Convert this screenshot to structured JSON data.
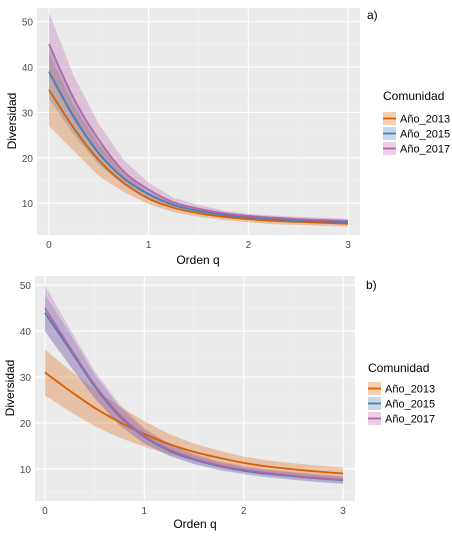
{
  "colors": {
    "panel_bg": "#ebebeb",
    "grid": "#ffffff",
    "Año_2013": "#d95f02",
    "Año_2015": "#4a7fb5",
    "Año_2017": "#b565a7"
  },
  "chart_data": [
    {
      "type": "line",
      "panel_label": "a)",
      "xlabel": "Orden q",
      "ylabel": "Diversidad",
      "xlim": [
        -0.12,
        3.12
      ],
      "ylim": [
        3,
        53
      ],
      "xticks": [
        0,
        1,
        2,
        3
      ],
      "yticks": [
        10,
        20,
        30,
        40,
        50
      ],
      "grid": true,
      "legend": {
        "title": "Comunidad",
        "position": "right"
      },
      "x": [
        0,
        0.25,
        0.5,
        0.75,
        1,
        1.25,
        1.5,
        1.75,
        2,
        2.25,
        2.5,
        2.75,
        3
      ],
      "series": [
        {
          "name": "Año_2013",
          "color_key": "Año_2013",
          "values": [
            35,
            26.5,
            19.5,
            14.5,
            11,
            9,
            7.8,
            7,
            6.5,
            6.1,
            5.9,
            5.7,
            5.5
          ],
          "lower": [
            27,
            21.5,
            16,
            12.5,
            9.8,
            8,
            7,
            6.3,
            5.8,
            5.4,
            5.2,
            5,
            4.8
          ],
          "upper": [
            43,
            31.5,
            23,
            16.5,
            12.2,
            10,
            8.6,
            7.7,
            7.2,
            6.8,
            6.6,
            6.4,
            6.2
          ]
        },
        {
          "name": "Año_2015",
          "color_key": "Año_2015",
          "values": [
            39,
            29,
            21,
            15.5,
            12,
            9.6,
            8.3,
            7.4,
            6.9,
            6.5,
            6.2,
            6,
            5.8
          ],
          "lower": [
            33,
            25,
            18.5,
            14,
            11,
            8.9,
            7.7,
            6.9,
            6.4,
            6,
            5.7,
            5.5,
            5.3
          ],
          "upper": [
            45,
            33,
            23.5,
            17,
            13,
            10.3,
            8.9,
            7.9,
            7.4,
            7,
            6.7,
            6.5,
            6.3
          ]
        },
        {
          "name": "Año_2017",
          "color_key": "Año_2017",
          "values": [
            45,
            33,
            24,
            17,
            13,
            10.2,
            8.8,
            7.8,
            7.2,
            6.8,
            6.5,
            6.3,
            6.1
          ],
          "lower": [
            38,
            28,
            20.5,
            15,
            11.5,
            9.2,
            8,
            7.2,
            6.7,
            6.3,
            6,
            5.8,
            5.6
          ],
          "upper": [
            52,
            38,
            27.5,
            19.5,
            14.5,
            11.2,
            9.6,
            8.4,
            7.7,
            7.3,
            7,
            6.8,
            6.6
          ]
        }
      ]
    },
    {
      "type": "line",
      "panel_label": "b)",
      "xlabel": "Orden q",
      "ylabel": "Diversidad",
      "xlim": [
        -0.1,
        3.12
      ],
      "ylim": [
        3,
        52
      ],
      "xticks": [
        0,
        1,
        2,
        3
      ],
      "yticks": [
        10,
        20,
        30,
        40,
        50
      ],
      "grid": true,
      "legend": {
        "title": "Comunidad",
        "position": "right"
      },
      "x": [
        0,
        0.25,
        0.5,
        0.75,
        1,
        1.25,
        1.5,
        1.75,
        2,
        2.25,
        2.5,
        2.75,
        3
      ],
      "series": [
        {
          "name": "Año_2013",
          "color_key": "Año_2013",
          "values": [
            31,
            27,
            23.3,
            20.2,
            17.6,
            15.4,
            13.7,
            12.4,
            11.3,
            10.5,
            9.9,
            9.4,
            9
          ],
          "lower": [
            26,
            22.5,
            19.3,
            16.8,
            14.8,
            13.2,
            11.9,
            10.8,
            9.9,
            9.2,
            8.6,
            8.1,
            7.7
          ],
          "upper": [
            36,
            31.5,
            27.3,
            23.6,
            20.4,
            17.6,
            15.5,
            14,
            12.7,
            11.8,
            11.2,
            10.7,
            10.3
          ]
        },
        {
          "name": "Año_2015",
          "color_key": "Año_2015",
          "values": [
            44,
            36,
            28,
            21.5,
            17,
            14,
            12,
            10.6,
            9.6,
            8.9,
            8.4,
            7.9,
            7.5
          ],
          "lower": [
            40,
            32.5,
            25.5,
            19.5,
            15.5,
            12.8,
            11,
            9.7,
            8.8,
            8.1,
            7.6,
            7.1,
            6.7
          ],
          "upper": [
            48,
            39.5,
            30.5,
            23.5,
            18.5,
            15.2,
            13,
            11.5,
            10.4,
            9.7,
            9.2,
            8.7,
            8.3
          ]
        },
        {
          "name": "Año_2017",
          "color_key": "Año_2017",
          "values": [
            45,
            36.5,
            28.3,
            21.8,
            17.2,
            14.2,
            12.2,
            10.8,
            9.8,
            9.1,
            8.5,
            8,
            7.6
          ],
          "lower": [
            40,
            32.5,
            25.3,
            19.5,
            15.5,
            12.9,
            11.1,
            9.9,
            9,
            8.3,
            7.7,
            7.2,
            6.8
          ],
          "upper": [
            50,
            40.5,
            31.3,
            24.1,
            18.9,
            15.5,
            13.3,
            11.7,
            10.6,
            9.9,
            9.3,
            8.8,
            8.4
          ]
        }
      ]
    }
  ]
}
